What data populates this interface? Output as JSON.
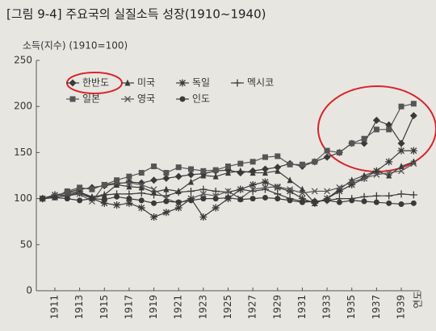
{
  "chart_data": {
    "type": "line",
    "title": "[그림 9-4] 주요국의 실질소득 성장(1910~1940)",
    "y_label": "소득(지수) (1910=100)",
    "x_label": "연도",
    "x": [
      1910,
      1911,
      1912,
      1913,
      1914,
      1915,
      1916,
      1917,
      1918,
      1919,
      1920,
      1921,
      1922,
      1923,
      1924,
      1925,
      1926,
      1927,
      1928,
      1929,
      1930,
      1931,
      1932,
      1933,
      1934,
      1935,
      1936,
      1937,
      1938,
      1939,
      1940
    ],
    "xlim": [
      1909.5,
      1940.5
    ],
    "xticks": [
      1911,
      1913,
      1915,
      1917,
      1919,
      1921,
      1923,
      1925,
      1927,
      1929,
      1931,
      1933,
      1935,
      1937,
      1939
    ],
    "ylim": [
      0,
      250
    ],
    "yticks": [
      0,
      50,
      100,
      150,
      200,
      250
    ],
    "grid": false,
    "series": [
      {
        "name": "한반도",
        "color": "#3a3a3a",
        "marker": "diamond",
        "values": [
          100,
          102,
          107,
          110,
          112,
          114,
          116,
          118,
          117,
          120,
          122,
          124,
          126,
          127,
          130,
          131,
          128,
          130,
          132,
          134,
          138,
          135,
          140,
          145,
          150,
          160,
          160,
          185,
          180,
          160,
          190
        ]
      },
      {
        "name": "미국",
        "color": "#3a3a3a",
        "marker": "triangle",
        "values": [
          100,
          103,
          104,
          107,
          102,
          104,
          115,
          113,
          112,
          107,
          110,
          108,
          118,
          125,
          124,
          128,
          130,
          128,
          128,
          130,
          120,
          110,
          95,
          100,
          110,
          120,
          125,
          130,
          125,
          135,
          140
        ]
      },
      {
        "name": "독일",
        "color": "#3a3a3a",
        "marker": "star",
        "values": [
          100,
          104,
          106,
          108,
          100,
          95,
          93,
          95,
          90,
          80,
          85,
          90,
          100,
          80,
          90,
          100,
          110,
          115,
          118,
          112,
          108,
          100,
          95,
          100,
          108,
          115,
          122,
          130,
          140,
          152,
          152
        ]
      },
      {
        "name": "멕시코",
        "color": "#3a3a3a",
        "marker": "plus",
        "values": [
          100,
          104,
          103,
          106,
          100,
          104,
          105,
          105,
          106,
          104,
          103,
          107,
          108,
          110,
          108,
          107,
          110,
          108,
          110,
          105,
          100,
          97,
          97,
          98,
          100,
          100,
          102,
          103,
          103,
          105,
          104
        ]
      },
      {
        "name": "일본",
        "color": "#555555",
        "marker": "square",
        "values": [
          100,
          102,
          108,
          112,
          110,
          115,
          120,
          124,
          128,
          135,
          128,
          134,
          132,
          130,
          131,
          135,
          138,
          140,
          145,
          146,
          137,
          137,
          140,
          152,
          150,
          160,
          165,
          175,
          175,
          200,
          203
        ]
      },
      {
        "name": "영국",
        "color": "#555555",
        "marker": "cross",
        "values": [
          100,
          101,
          103,
          105,
          97,
          115,
          117,
          117,
          115,
          110,
          100,
          95,
          100,
          105,
          103,
          108,
          100,
          110,
          112,
          113,
          110,
          106,
          108,
          108,
          112,
          118,
          122,
          126,
          128,
          130,
          138
        ]
      },
      {
        "name": "인도",
        "color": "#3a3a3a",
        "marker": "circle",
        "values": [
          100,
          101,
          100,
          98,
          100,
          99,
          102,
          100,
          98,
          95,
          97,
          96,
          98,
          100,
          100,
          101,
          99,
          100,
          101,
          100,
          98,
          96,
          97,
          98,
          96,
          98,
          97,
          96,
          95,
          94,
          95
        ]
      }
    ]
  }
}
